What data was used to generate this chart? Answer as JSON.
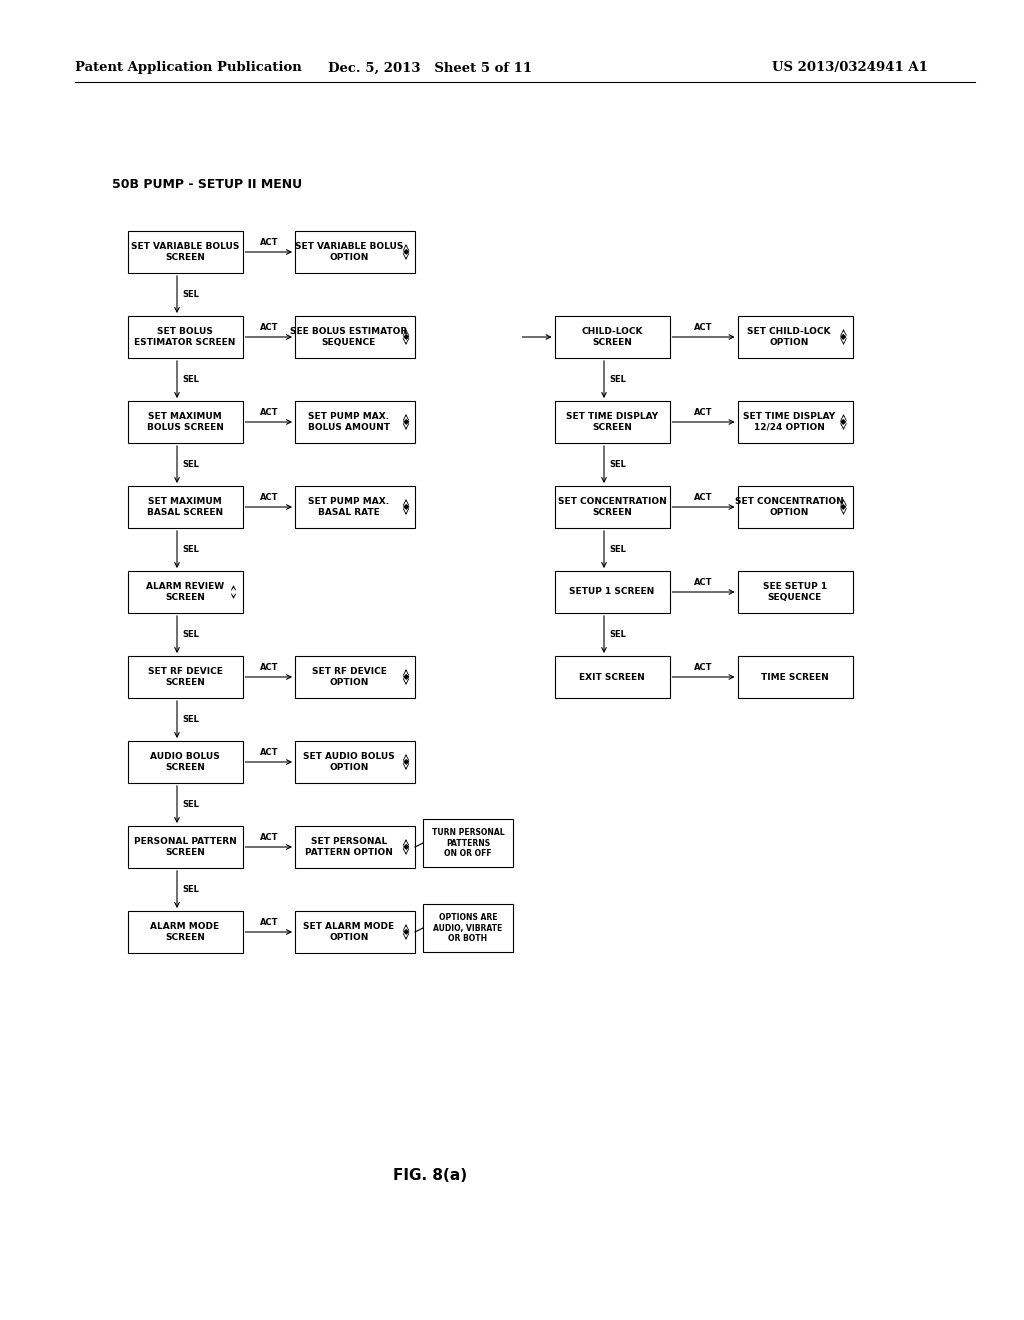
{
  "header_left": "Patent Application Publication",
  "header_center": "Dec. 5, 2013   Sheet 5 of 11",
  "header_right": "US 2013/0324941 A1",
  "title": "50B PUMP - SETUP II MENU",
  "figure_label": "FIG. 8(a)",
  "bg_color": "#ffffff",
  "left_main_boxes": [
    {
      "text": "SET VARIABLE BOLUS\nSCREEN",
      "updown": false
    },
    {
      "text": "SET BOLUS\nESTIMATOR SCREEN",
      "updown": false
    },
    {
      "text": "SET MAXIMUM\nBOLUS SCREEN",
      "updown": false
    },
    {
      "text": "SET MAXIMUM\nBASAL SCREEN",
      "updown": false
    },
    {
      "text": "ALARM REVIEW\nSCREEN",
      "updown": true
    },
    {
      "text": "SET RF DEVICE\nSCREEN",
      "updown": false
    },
    {
      "text": "AUDIO BOLUS\nSCREEN",
      "updown": false
    },
    {
      "text": "PERSONAL PATTERN\nSCREEN",
      "updown": false
    },
    {
      "text": "ALARM MODE\nSCREEN",
      "updown": false
    }
  ],
  "left_act_boxes": [
    {
      "text": "SET VARIABLE BOLUS\nOPTION",
      "updown": true
    },
    {
      "text": "SEE BOLUS ESTIMATOR\nSEQUENCE",
      "updown": true
    },
    {
      "text": "SET PUMP MAX.\nBOLUS AMOUNT",
      "updown": true
    },
    {
      "text": "SET PUMP MAX.\nBASAL RATE",
      "updown": true
    },
    null,
    {
      "text": "SET RF DEVICE\nOPTION",
      "updown": true
    },
    {
      "text": "SET AUDIO BOLUS\nOPTION",
      "updown": true
    },
    {
      "text": "SET PERSONAL\nPATTERN OPTION",
      "updown": true
    },
    {
      "text": "SET ALARM MODE\nOPTION",
      "updown": true
    }
  ],
  "right_main_boxes": [
    {
      "text": "CHILD-LOCK\nSCREEN",
      "updown": false
    },
    {
      "text": "SET TIME DISPLAY\nSCREEN",
      "updown": false
    },
    {
      "text": "SET CONCENTRATION\nSCREEN",
      "updown": false
    },
    {
      "text": "SETUP 1 SCREEN",
      "updown": false
    },
    {
      "text": "EXIT SCREEN",
      "updown": false
    }
  ],
  "right_act_boxes": [
    {
      "text": "SET CHILD-LOCK\nOPTION",
      "updown": true
    },
    {
      "text": "SET TIME DISPLAY\n12/24 OPTION",
      "updown": true
    },
    {
      "text": "SET CONCENTRATION\nOPTION",
      "updown": true
    },
    {
      "text": "SEE SETUP 1\nSEQUENCE",
      "updown": false
    },
    {
      "text": "TIME SCREEN",
      "updown": false
    }
  ],
  "ann1_text": "TURN PERSONAL\nPATTERNS\nON OR OFF",
  "ann2_text": "OPTIONS ARE\nAUDIO, VIBRATE\nOR BOTH"
}
